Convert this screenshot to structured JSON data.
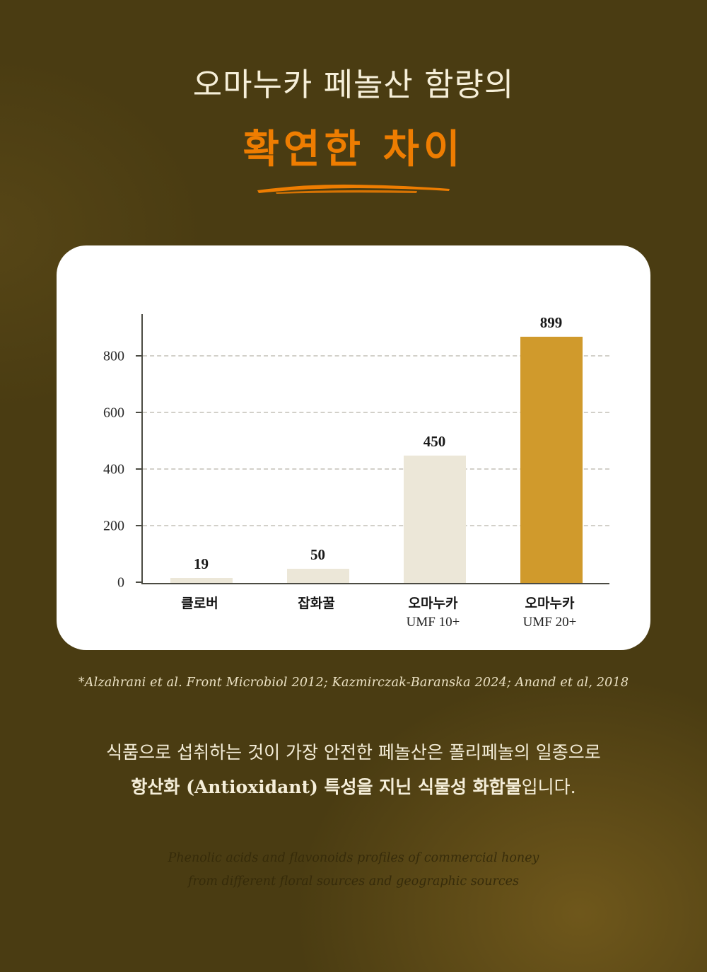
{
  "header": {
    "title_line1": "오마누카 페놀산 함량의",
    "title_line2": "확연한 차이"
  },
  "chart_data": {
    "type": "bar",
    "categories": [
      "클로버",
      "잡화꿀",
      "오마누카",
      "오마누카"
    ],
    "sublabels": [
      "",
      "",
      "UMF 10+",
      "UMF 20+"
    ],
    "values": [
      19,
      50,
      450,
      899
    ],
    "yticks": [
      0,
      200,
      400,
      600,
      800
    ],
    "ylim": [
      0,
      950
    ],
    "grid": "dashed-horizontal",
    "legend": "none",
    "title": "",
    "xlabel": "",
    "ylabel": "",
    "highlight_index": 3,
    "bar_color": "#ece7d8",
    "highlight_color": "#d09a2c"
  },
  "citation": "*Alzahrani et al. Front Microbiol 2012; Kazmirczak-Baranska 2024; Anand et al, 2018",
  "body": {
    "line1": "식품으로 섭취하는 것이 가장 안전한 페놀산은 폴리페놀의 일종으로",
    "line2_bold": "항산화 (Antioxidant) 특성을 지닌 식물성 화합물",
    "line2_rest": "입니다."
  },
  "footnote": {
    "line1": "Phenolic acids and flavonoids profiles of commercial honey",
    "line2": "from different floral sources and geographic sources"
  },
  "colors": {
    "background": "#4a3c12",
    "accent_orange": "#ee7d01",
    "card": "#ffffff",
    "text_cream": "#f5eed9"
  }
}
